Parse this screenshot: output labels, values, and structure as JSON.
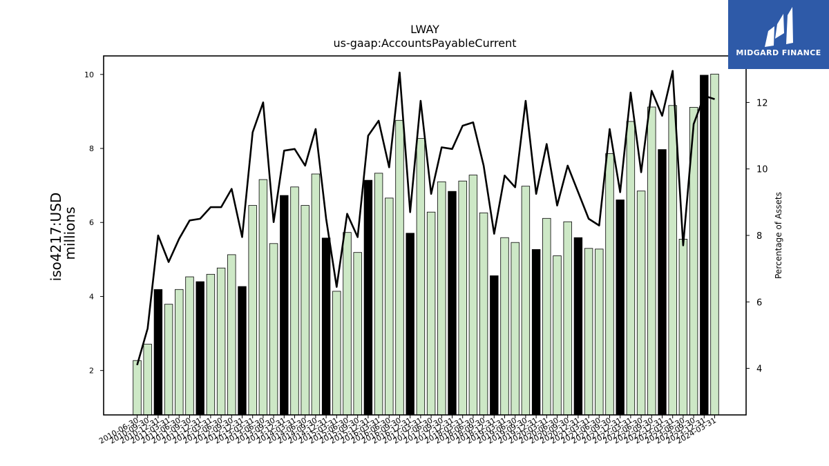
{
  "brand": {
    "name": "MIDGARD FINANCE",
    "logo_icon": "midgard-logo-icon",
    "background": "#2e5aa8"
  },
  "colors": {
    "bar_default": "#cde8c6",
    "bar_highlight": "#000000",
    "line": "#000000"
  },
  "chart_data": {
    "type": "bar",
    "title": "LWAY",
    "subtitle": "us-gaap:AccountsPayableCurrent",
    "ylabel_left": [
      "iso4217:USD",
      "millions"
    ],
    "ylabel_right": "Percentage of Assets",
    "ylim_left": [
      0.8,
      10.5
    ],
    "ylim_right": [
      2.6,
      13.4
    ],
    "yticks_left": [
      2,
      4,
      6,
      8,
      10
    ],
    "yticks_right": [
      4,
      6,
      8,
      10,
      12
    ],
    "grid": false,
    "legend": "none",
    "tick_labels": [
      "2010-06-30",
      "2010-09-30",
      "2010-12-31",
      "2011-03-31",
      "2011-06-30",
      "2011-09-30",
      "2011-12-31",
      "2012-03-31",
      "2012-06-30",
      "2012-09-30",
      "2012-12-31",
      "2013-03-31",
      "2013-06-30",
      "2013-09-30",
      "2013-12-31",
      "2014-03-31",
      "2014-06-30",
      "2014-09-30",
      "2014-12-31",
      "2015-03-31",
      "2015-06-30",
      "2015-09-30",
      "2015-12-31",
      "2016-03-31",
      "2016-06-30",
      "2016-09-30",
      "2016-12-31",
      "2017-03-31",
      "2017-06-30",
      "2017-09-30",
      "2017-12-31",
      "2018-03-31",
      "2018-06-30",
      "2018-09-30",
      "2018-12-31",
      "2019-03-31",
      "2019-06-30",
      "2019-09-30",
      "2019-12-31",
      "2020-03-31",
      "2020-06-30",
      "2020-09-30",
      "2020-12-31",
      "2021-03-31",
      "2021-06-30",
      "2021-09-30",
      "2021-12-31",
      "2022-03-31",
      "2022-06-30",
      "2022-09-30",
      "2022-12-31",
      "2023-03-31",
      "2023-06-30",
      "2023-09-30",
      "2023-12-31",
      "2024-03-31"
    ],
    "categories": [
      "2010-06-30",
      "2010-09-30",
      "2010-12-31",
      "2011-03-31",
      "2011-06-30",
      "2011-09-30",
      "2011-12-31",
      "2012-03-31",
      "2012-06-30",
      "2012-09-30",
      "2012-12-31",
      "2013-03-31",
      "2013-06-30",
      "2013-09-30",
      "2013-12-31",
      "2014-03-31",
      "2014-06-30",
      "2014-09-30",
      "2014-12-31",
      "2015-03-31",
      "2015-06-30",
      "2015-09-30",
      "2015-12-31",
      "2016-03-31",
      "2016-06-30",
      "2016-09-30",
      "2016-12-31",
      "2017-03-31",
      "2017-06-30",
      "2017-09-30",
      "2017-12-31",
      "2018-03-31",
      "2018-06-30",
      "2018-09-30",
      "2018-12-31",
      "2019-03-31",
      "2019-06-30",
      "2019-09-30",
      "2019-12-31",
      "2020-03-31",
      "2020-06-30",
      "2020-09-30",
      "2020-12-31",
      "2021-03-31",
      "2021-06-30",
      "2021-09-30",
      "2021-12-31",
      "2022-03-31",
      "2022-06-30",
      "2022-09-30",
      "2022-12-31",
      "2023-03-31",
      "2023-06-30",
      "2023-09-30",
      "2023-12-31",
      "2024-03-31"
    ],
    "bars": {
      "axis": "left",
      "values": [
        2.27,
        2.71,
        4.19,
        3.79,
        4.19,
        4.53,
        4.4,
        4.6,
        4.77,
        5.13,
        4.27,
        6.46,
        7.16,
        5.43,
        6.73,
        6.96,
        6.46,
        7.31,
        5.58,
        4.14,
        5.73,
        5.19,
        7.14,
        7.33,
        6.66,
        8.76,
        5.71,
        8.27,
        6.28,
        7.1,
        6.84,
        7.12,
        7.28,
        6.26,
        4.56,
        5.59,
        5.46,
        6.98,
        5.27,
        6.11,
        5.1,
        6.02,
        5.59,
        5.3,
        5.28,
        7.86,
        6.61,
        8.73,
        6.85,
        9.12,
        7.97,
        9.16,
        5.55,
        9.11,
        9.98,
        10.01
      ],
      "highlight": [
        false,
        false,
        true,
        false,
        false,
        false,
        true,
        false,
        false,
        false,
        true,
        false,
        false,
        false,
        true,
        false,
        false,
        false,
        true,
        false,
        false,
        false,
        true,
        false,
        false,
        false,
        true,
        false,
        false,
        false,
        true,
        false,
        false,
        false,
        true,
        false,
        false,
        false,
        true,
        false,
        false,
        false,
        true,
        false,
        false,
        false,
        true,
        false,
        false,
        false,
        true,
        false,
        false,
        false,
        true,
        false
      ]
    },
    "line": {
      "axis": "right",
      "values": [
        4.1,
        5.2,
        8.0,
        7.2,
        7.9,
        8.45,
        8.5,
        8.85,
        8.85,
        9.4,
        7.95,
        11.1,
        12.0,
        8.4,
        10.55,
        10.6,
        10.1,
        11.2,
        8.5,
        6.45,
        8.65,
        7.95,
        11.0,
        11.45,
        10.05,
        12.9,
        8.7,
        12.05,
        9.25,
        10.65,
        10.6,
        11.3,
        11.4,
        10.1,
        8.05,
        9.8,
        9.45,
        12.05,
        9.25,
        10.75,
        8.9,
        10.1,
        9.3,
        8.5,
        8.3,
        11.2,
        9.3,
        12.3,
        9.9,
        12.35,
        11.6,
        12.95,
        7.7,
        11.35,
        12.2,
        12.1
      ]
    }
  }
}
